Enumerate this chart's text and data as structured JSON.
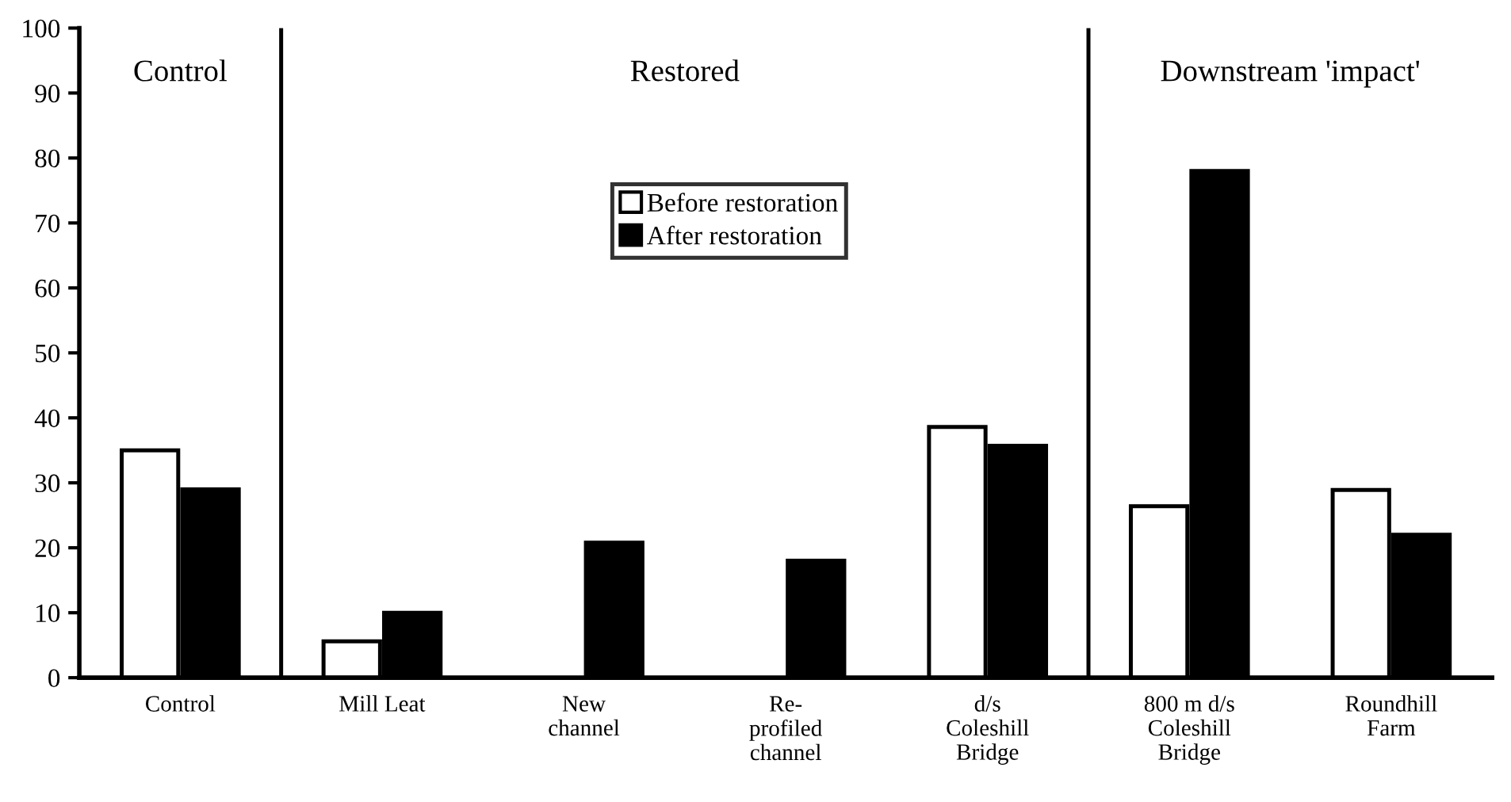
{
  "chart_data": {
    "type": "bar",
    "categories": [
      "Control",
      "Mill Leat",
      "New\nchannel",
      "Re-\nprofiled\nchannel",
      "d/s\nColeshill\nBridge",
      "800 m d/s\nColeshill\nBridge",
      "Roundhill\nFarm"
    ],
    "series": [
      {
        "name": "Before restoration",
        "color": "#ffffff",
        "values": [
          35,
          5.6,
          null,
          null,
          38.6,
          26.4,
          28.9
        ]
      },
      {
        "name": "After restoration",
        "color": "#000000",
        "values": [
          29,
          10,
          20.8,
          18,
          35.7,
          78,
          22
        ]
      }
    ],
    "ylim": [
      0,
      100
    ],
    "yticks": [
      0,
      10,
      20,
      30,
      40,
      50,
      60,
      70,
      80,
      90,
      100
    ],
    "annotations": [
      "Control",
      "Restored",
      "Downstream 'impact'"
    ],
    "legend": "top",
    "grid": false
  }
}
